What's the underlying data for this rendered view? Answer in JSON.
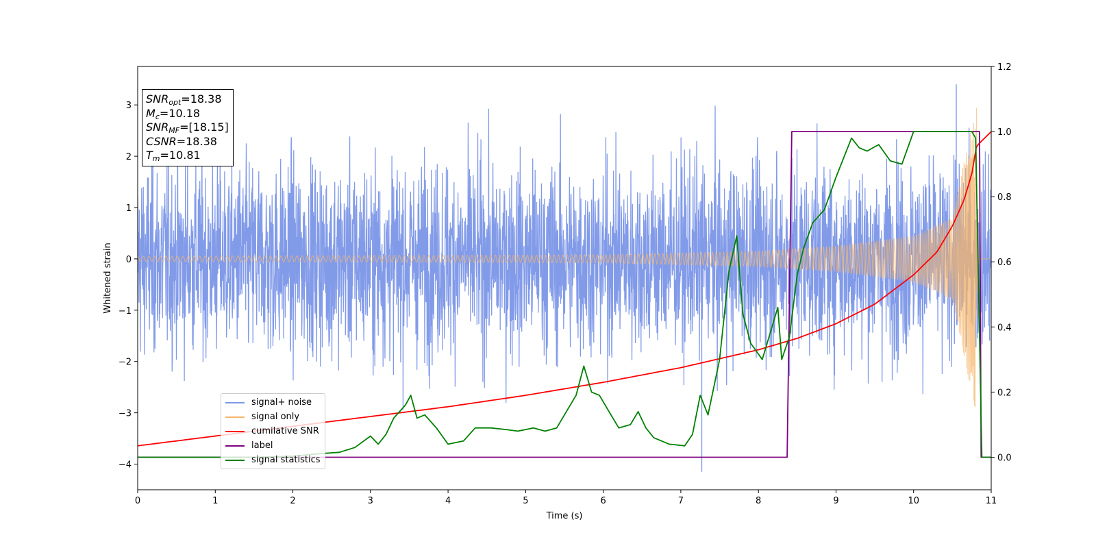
{
  "chart_data": {
    "type": "line",
    "xlabel": "Time (s)",
    "ylabel": "Whitened strain",
    "xlim": [
      0,
      11
    ],
    "ylim_left": [
      -4.5,
      3.75
    ],
    "ylim_right": [
      -0.1,
      1.2
    ],
    "xticks": [
      0,
      1,
      2,
      3,
      4,
      5,
      6,
      7,
      8,
      9,
      10,
      11
    ],
    "yticks_left": [
      -4,
      -3,
      -2,
      -1,
      0,
      1,
      2,
      3
    ],
    "yticks_right": [
      0.0,
      0.2,
      0.4,
      0.6,
      0.8,
      1.0,
      1.2
    ],
    "legend_position": "lower-left",
    "annotation": [
      {
        "var": "SNR",
        "sub": "opt",
        "value": "=18.38"
      },
      {
        "var": "M",
        "sub": "c",
        "value": "=10.18"
      },
      {
        "var": "SNR",
        "sub": "MF",
        "value": "=[18.15]"
      },
      {
        "var": "CSNR",
        "sub": "",
        "value": "=18.38"
      },
      {
        "var": "T",
        "sub": "m",
        "value": "=10.81"
      }
    ],
    "series": [
      {
        "name": "signal+ noise",
        "axis": "left",
        "color": "#7b96e8",
        "description_values": {
          "envelope_typical": [
            -2.0,
            2.0
          ],
          "max": 3.4,
          "min": -4.15
        }
      },
      {
        "name": "signal only",
        "axis": "left",
        "color": "#f5b66b",
        "chirp_amplitude": {
          "x": [
            0,
            6,
            8,
            9,
            10,
            10.5,
            10.8
          ],
          "amp": [
            0.05,
            0.08,
            0.15,
            0.25,
            0.45,
            0.8,
            3.0
          ]
        },
        "merger_time": 10.81
      },
      {
        "name": "cumilative SNR",
        "axis": "right",
        "color": "#ff0000",
        "x": [
          0,
          1,
          2,
          3,
          4,
          5,
          6,
          7,
          8,
          8.5,
          9,
          9.5,
          10,
          10.3,
          10.5,
          10.65,
          10.75,
          10.81,
          11
        ],
        "y": [
          0.035,
          0.065,
          0.095,
          0.125,
          0.155,
          0.19,
          0.23,
          0.275,
          0.33,
          0.365,
          0.41,
          0.47,
          0.56,
          0.63,
          0.71,
          0.79,
          0.87,
          0.955,
          1.0
        ]
      },
      {
        "name": "label",
        "axis": "right",
        "color": "#800080",
        "x": [
          0,
          8.37,
          8.43,
          10.85,
          10.87,
          11
        ],
        "y": [
          0,
          0,
          1,
          1,
          0,
          0
        ]
      },
      {
        "name": "signal statistics",
        "axis": "right",
        "color": "#008000",
        "x": [
          0,
          0.5,
          1,
          1.5,
          2,
          2.3,
          2.6,
          2.8,
          3.0,
          3.1,
          3.2,
          3.3,
          3.45,
          3.52,
          3.6,
          3.7,
          3.85,
          4.0,
          4.2,
          4.35,
          4.55,
          4.75,
          4.9,
          5.1,
          5.25,
          5.4,
          5.5,
          5.65,
          5.75,
          5.85,
          5.95,
          6.05,
          6.2,
          6.35,
          6.45,
          6.55,
          6.65,
          6.85,
          7.05,
          7.15,
          7.25,
          7.35,
          7.5,
          7.62,
          7.72,
          7.8,
          7.9,
          8.05,
          8.15,
          8.25,
          8.3,
          8.4,
          8.5,
          8.58,
          8.7,
          8.85,
          9.0,
          9.1,
          9.2,
          9.3,
          9.4,
          9.55,
          9.7,
          9.85,
          10.0,
          10.2,
          10.5,
          10.75,
          10.8,
          10.88,
          11
        ],
        "y": [
          0,
          0,
          0,
          0.0,
          0.003,
          0.01,
          0.015,
          0.03,
          0.065,
          0.04,
          0.07,
          0.12,
          0.16,
          0.19,
          0.12,
          0.13,
          0.09,
          0.04,
          0.05,
          0.09,
          0.09,
          0.085,
          0.08,
          0.09,
          0.08,
          0.09,
          0.13,
          0.19,
          0.28,
          0.2,
          0.19,
          0.15,
          0.09,
          0.1,
          0.14,
          0.09,
          0.06,
          0.04,
          0.035,
          0.07,
          0.19,
          0.13,
          0.3,
          0.57,
          0.68,
          0.44,
          0.35,
          0.3,
          0.38,
          0.46,
          0.3,
          0.37,
          0.56,
          0.64,
          0.72,
          0.76,
          0.86,
          0.92,
          0.98,
          0.95,
          0.94,
          0.96,
          0.91,
          0.9,
          1.0,
          1.0,
          1.0,
          1.0,
          0.98,
          0.0,
          0.0
        ]
      }
    ]
  },
  "colors": {
    "noise": "#7b96e8",
    "signal": "#f5b66b",
    "csnr": "#ff0000",
    "label": "#800080",
    "stat": "#008000"
  }
}
